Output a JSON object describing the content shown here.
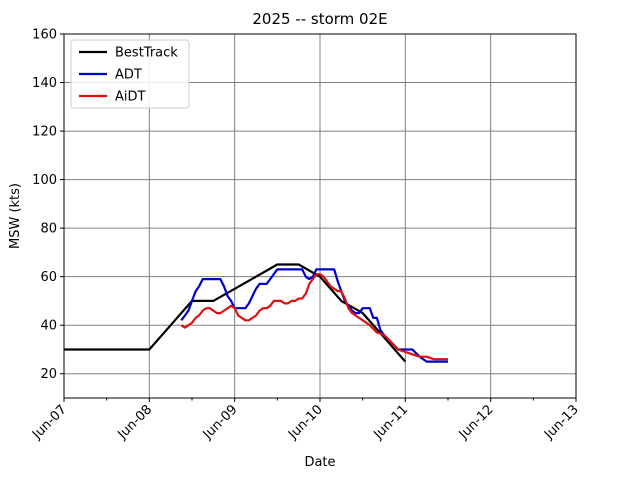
{
  "chart_data": {
    "type": "line",
    "title": "2025 -- storm 02E",
    "xlabel": "Date",
    "ylabel": "MSW (kts)",
    "xlim": [
      "2025-06-07 00:00",
      "2025-06-13 00:00"
    ],
    "ylim": [
      10,
      160
    ],
    "x_ticks": [
      {
        "date": "2025-06-07 00:00",
        "label": "Jun-07"
      },
      {
        "date": "2025-06-08 00:00",
        "label": "Jun-08"
      },
      {
        "date": "2025-06-09 00:00",
        "label": "Jun-09"
      },
      {
        "date": "2025-06-10 00:00",
        "label": "Jun-10"
      },
      {
        "date": "2025-06-11 00:00",
        "label": "Jun-11"
      },
      {
        "date": "2025-06-12 00:00",
        "label": "Jun-12"
      },
      {
        "date": "2025-06-13 00:00",
        "label": "Jun-13"
      }
    ],
    "y_ticks": [
      20,
      40,
      60,
      80,
      100,
      120,
      140,
      160
    ],
    "grid": true,
    "legend_position": "top-left",
    "series": [
      {
        "name": "BestTrack",
        "color": "#000000",
        "points": [
          [
            "2025-06-07 00:00",
            30
          ],
          [
            "2025-06-07 06:00",
            30
          ],
          [
            "2025-06-07 12:00",
            30
          ],
          [
            "2025-06-07 18:00",
            30
          ],
          [
            "2025-06-08 00:00",
            30
          ],
          [
            "2025-06-08 06:00",
            40
          ],
          [
            "2025-06-08 12:00",
            50
          ],
          [
            "2025-06-08 18:00",
            50
          ],
          [
            "2025-06-09 00:00",
            55
          ],
          [
            "2025-06-09 06:00",
            60
          ],
          [
            "2025-06-09 12:00",
            65
          ],
          [
            "2025-06-09 18:00",
            65
          ],
          [
            "2025-06-10 00:00",
            60
          ],
          [
            "2025-06-10 06:00",
            50
          ],
          [
            "2025-06-10 12:00",
            45
          ],
          [
            "2025-06-10 18:00",
            35
          ],
          [
            "2025-06-11 00:00",
            25
          ]
        ]
      },
      {
        "name": "ADT",
        "color": "#0000cc",
        "points": [
          [
            "2025-06-08 09:00",
            42
          ],
          [
            "2025-06-08 10:00",
            44
          ],
          [
            "2025-06-08 11:00",
            46
          ],
          [
            "2025-06-08 12:00",
            50
          ],
          [
            "2025-06-08 13:00",
            54
          ],
          [
            "2025-06-08 14:00",
            56
          ],
          [
            "2025-06-08 15:00",
            59
          ],
          [
            "2025-06-08 16:00",
            59
          ],
          [
            "2025-06-08 17:00",
            59
          ],
          [
            "2025-06-08 18:00",
            59
          ],
          [
            "2025-06-08 19:00",
            59
          ],
          [
            "2025-06-08 20:00",
            59
          ],
          [
            "2025-06-08 21:00",
            56
          ],
          [
            "2025-06-08 22:00",
            52
          ],
          [
            "2025-06-08 23:00",
            50
          ],
          [
            "2025-06-09 00:00",
            47
          ],
          [
            "2025-06-09 01:00",
            47
          ],
          [
            "2025-06-09 02:00",
            47
          ],
          [
            "2025-06-09 03:00",
            47
          ],
          [
            "2025-06-09 04:00",
            49
          ],
          [
            "2025-06-09 05:00",
            52
          ],
          [
            "2025-06-09 06:00",
            55
          ],
          [
            "2025-06-09 07:00",
            57
          ],
          [
            "2025-06-09 08:00",
            57
          ],
          [
            "2025-06-09 09:00",
            57
          ],
          [
            "2025-06-09 10:00",
            59
          ],
          [
            "2025-06-09 11:00",
            61
          ],
          [
            "2025-06-09 12:00",
            63
          ],
          [
            "2025-06-09 13:00",
            63
          ],
          [
            "2025-06-09 15:00",
            63
          ],
          [
            "2025-06-09 17:00",
            63
          ],
          [
            "2025-06-09 19:00",
            63
          ],
          [
            "2025-06-09 20:00",
            60
          ],
          [
            "2025-06-09 21:00",
            59
          ],
          [
            "2025-06-09 22:00",
            60
          ],
          [
            "2025-06-09 23:00",
            63
          ],
          [
            "2025-06-10 00:00",
            63
          ],
          [
            "2025-06-10 02:00",
            63
          ],
          [
            "2025-06-10 04:00",
            63
          ],
          [
            "2025-06-10 05:00",
            58
          ],
          [
            "2025-06-10 06:00",
            54
          ],
          [
            "2025-06-10 07:00",
            50
          ],
          [
            "2025-06-10 08:00",
            48
          ],
          [
            "2025-06-10 09:00",
            46
          ],
          [
            "2025-06-10 10:00",
            45
          ],
          [
            "2025-06-10 11:00",
            45
          ],
          [
            "2025-06-10 12:00",
            47
          ],
          [
            "2025-06-10 13:00",
            47
          ],
          [
            "2025-06-10 14:00",
            47
          ],
          [
            "2025-06-10 15:00",
            43
          ],
          [
            "2025-06-10 16:00",
            43
          ],
          [
            "2025-06-10 17:00",
            38
          ],
          [
            "2025-06-10 18:00",
            36
          ],
          [
            "2025-06-10 20:00",
            33
          ],
          [
            "2025-06-10 22:00",
            30
          ],
          [
            "2025-06-11 00:00",
            30
          ],
          [
            "2025-06-11 02:00",
            30
          ],
          [
            "2025-06-11 04:00",
            27
          ],
          [
            "2025-06-11 06:00",
            25
          ],
          [
            "2025-06-11 08:00",
            25
          ],
          [
            "2025-06-11 10:00",
            25
          ],
          [
            "2025-06-11 12:00",
            25
          ]
        ]
      },
      {
        "name": "AiDT",
        "color": "#dd1111",
        "points": [
          [
            "2025-06-08 09:00",
            40
          ],
          [
            "2025-06-08 10:00",
            39
          ],
          [
            "2025-06-08 11:00",
            40
          ],
          [
            "2025-06-08 12:00",
            41
          ],
          [
            "2025-06-08 13:00",
            43
          ],
          [
            "2025-06-08 14:00",
            44
          ],
          [
            "2025-06-08 15:00",
            46
          ],
          [
            "2025-06-08 16:00",
            47
          ],
          [
            "2025-06-08 17:00",
            47
          ],
          [
            "2025-06-08 18:00",
            46
          ],
          [
            "2025-06-08 19:00",
            45
          ],
          [
            "2025-06-08 20:00",
            45
          ],
          [
            "2025-06-08 21:00",
            46
          ],
          [
            "2025-06-08 22:00",
            47
          ],
          [
            "2025-06-08 23:00",
            48
          ],
          [
            "2025-06-09 00:00",
            47
          ],
          [
            "2025-06-09 01:00",
            44
          ],
          [
            "2025-06-09 02:00",
            43
          ],
          [
            "2025-06-09 03:00",
            42
          ],
          [
            "2025-06-09 04:00",
            42
          ],
          [
            "2025-06-09 05:00",
            43
          ],
          [
            "2025-06-09 06:00",
            44
          ],
          [
            "2025-06-09 07:00",
            46
          ],
          [
            "2025-06-09 08:00",
            47
          ],
          [
            "2025-06-09 09:00",
            47
          ],
          [
            "2025-06-09 10:00",
            48
          ],
          [
            "2025-06-09 11:00",
            50
          ],
          [
            "2025-06-09 12:00",
            50
          ],
          [
            "2025-06-09 13:00",
            50
          ],
          [
            "2025-06-09 14:00",
            49
          ],
          [
            "2025-06-09 15:00",
            49
          ],
          [
            "2025-06-09 16:00",
            50
          ],
          [
            "2025-06-09 17:00",
            50
          ],
          [
            "2025-06-09 18:00",
            51
          ],
          [
            "2025-06-09 19:00",
            51
          ],
          [
            "2025-06-09 20:00",
            53
          ],
          [
            "2025-06-09 21:00",
            57
          ],
          [
            "2025-06-09 22:00",
            59
          ],
          [
            "2025-06-09 23:00",
            61
          ],
          [
            "2025-06-10 00:00",
            61
          ],
          [
            "2025-06-10 01:00",
            60
          ],
          [
            "2025-06-10 02:00",
            58
          ],
          [
            "2025-06-10 03:00",
            56
          ],
          [
            "2025-06-10 04:00",
            55
          ],
          [
            "2025-06-10 05:00",
            54
          ],
          [
            "2025-06-10 06:00",
            54
          ],
          [
            "2025-06-10 07:00",
            51
          ],
          [
            "2025-06-10 08:00",
            47
          ],
          [
            "2025-06-10 09:00",
            45
          ],
          [
            "2025-06-10 10:00",
            44
          ],
          [
            "2025-06-10 12:00",
            42
          ],
          [
            "2025-06-10 14:00",
            40
          ],
          [
            "2025-06-10 16:00",
            37
          ],
          [
            "2025-06-10 18:00",
            36
          ],
          [
            "2025-06-10 20:00",
            33
          ],
          [
            "2025-06-10 22:00",
            30
          ],
          [
            "2025-06-11 00:00",
            29
          ],
          [
            "2025-06-11 02:00",
            28
          ],
          [
            "2025-06-11 04:00",
            27
          ],
          [
            "2025-06-11 06:00",
            27
          ],
          [
            "2025-06-11 08:00",
            26
          ],
          [
            "2025-06-11 10:00",
            26
          ],
          [
            "2025-06-11 12:00",
            26
          ]
        ]
      }
    ]
  }
}
